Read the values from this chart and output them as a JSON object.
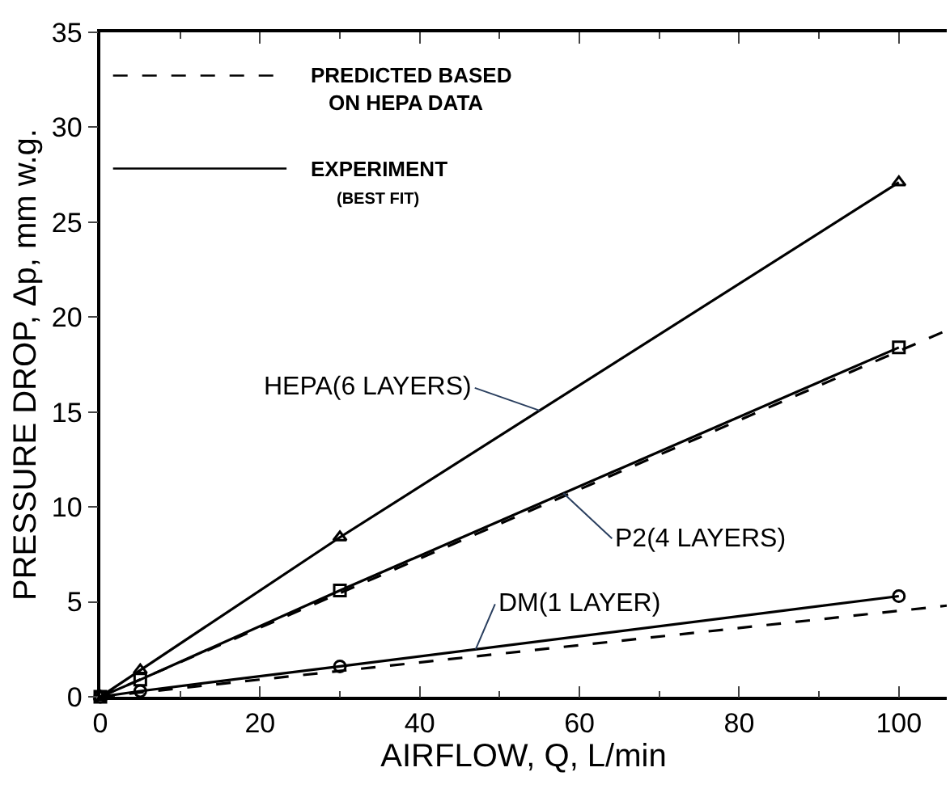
{
  "chart_data": {
    "type": "line",
    "xlabel": "AIRFLOW, Q, L/min",
    "ylabel": "PRESSURE DROP, Δp, mm w.g.",
    "xlim": [
      0,
      106
    ],
    "ylim": [
      0,
      35
    ],
    "xticks": [
      0,
      20,
      40,
      60,
      80,
      100
    ],
    "yticks": [
      0,
      5,
      10,
      15,
      20,
      25,
      30,
      35
    ],
    "annotations": [
      "PREDICTED BASED",
      "ON HEPA DATA",
      "EXPERIMENT",
      "(BEST FIT)"
    ],
    "series": [
      {
        "name": "HEPA(6 LAYERS)",
        "color": "#000000",
        "x": [
          0,
          5,
          30,
          100
        ],
        "values": [
          0,
          1.4,
          8.4,
          27.1
        ],
        "marker": "triangle",
        "line_style": "solid"
      },
      {
        "name": "P2(4 LAYERS)",
        "color": "#000000",
        "x": [
          0,
          5,
          30,
          100
        ],
        "values": [
          0,
          0.9,
          5.6,
          18.4
        ],
        "marker": "square",
        "line_style": "solid"
      },
      {
        "name": "DM(1 LAYER)",
        "color": "#000000",
        "x": [
          0,
          5,
          30,
          100
        ],
        "values": [
          0,
          0.3,
          1.6,
          5.3
        ],
        "marker": "circle",
        "line_style": "solid"
      },
      {
        "color": "#000000",
        "x": [
          0,
          106
        ],
        "values": [
          0,
          19.3
        ],
        "marker": "none",
        "line_style": "dashed"
      },
      {
        "color": "#000000",
        "x": [
          0,
          106
        ],
        "values": [
          0,
          4.8
        ],
        "marker": "none",
        "line_style": "dashed"
      }
    ]
  }
}
